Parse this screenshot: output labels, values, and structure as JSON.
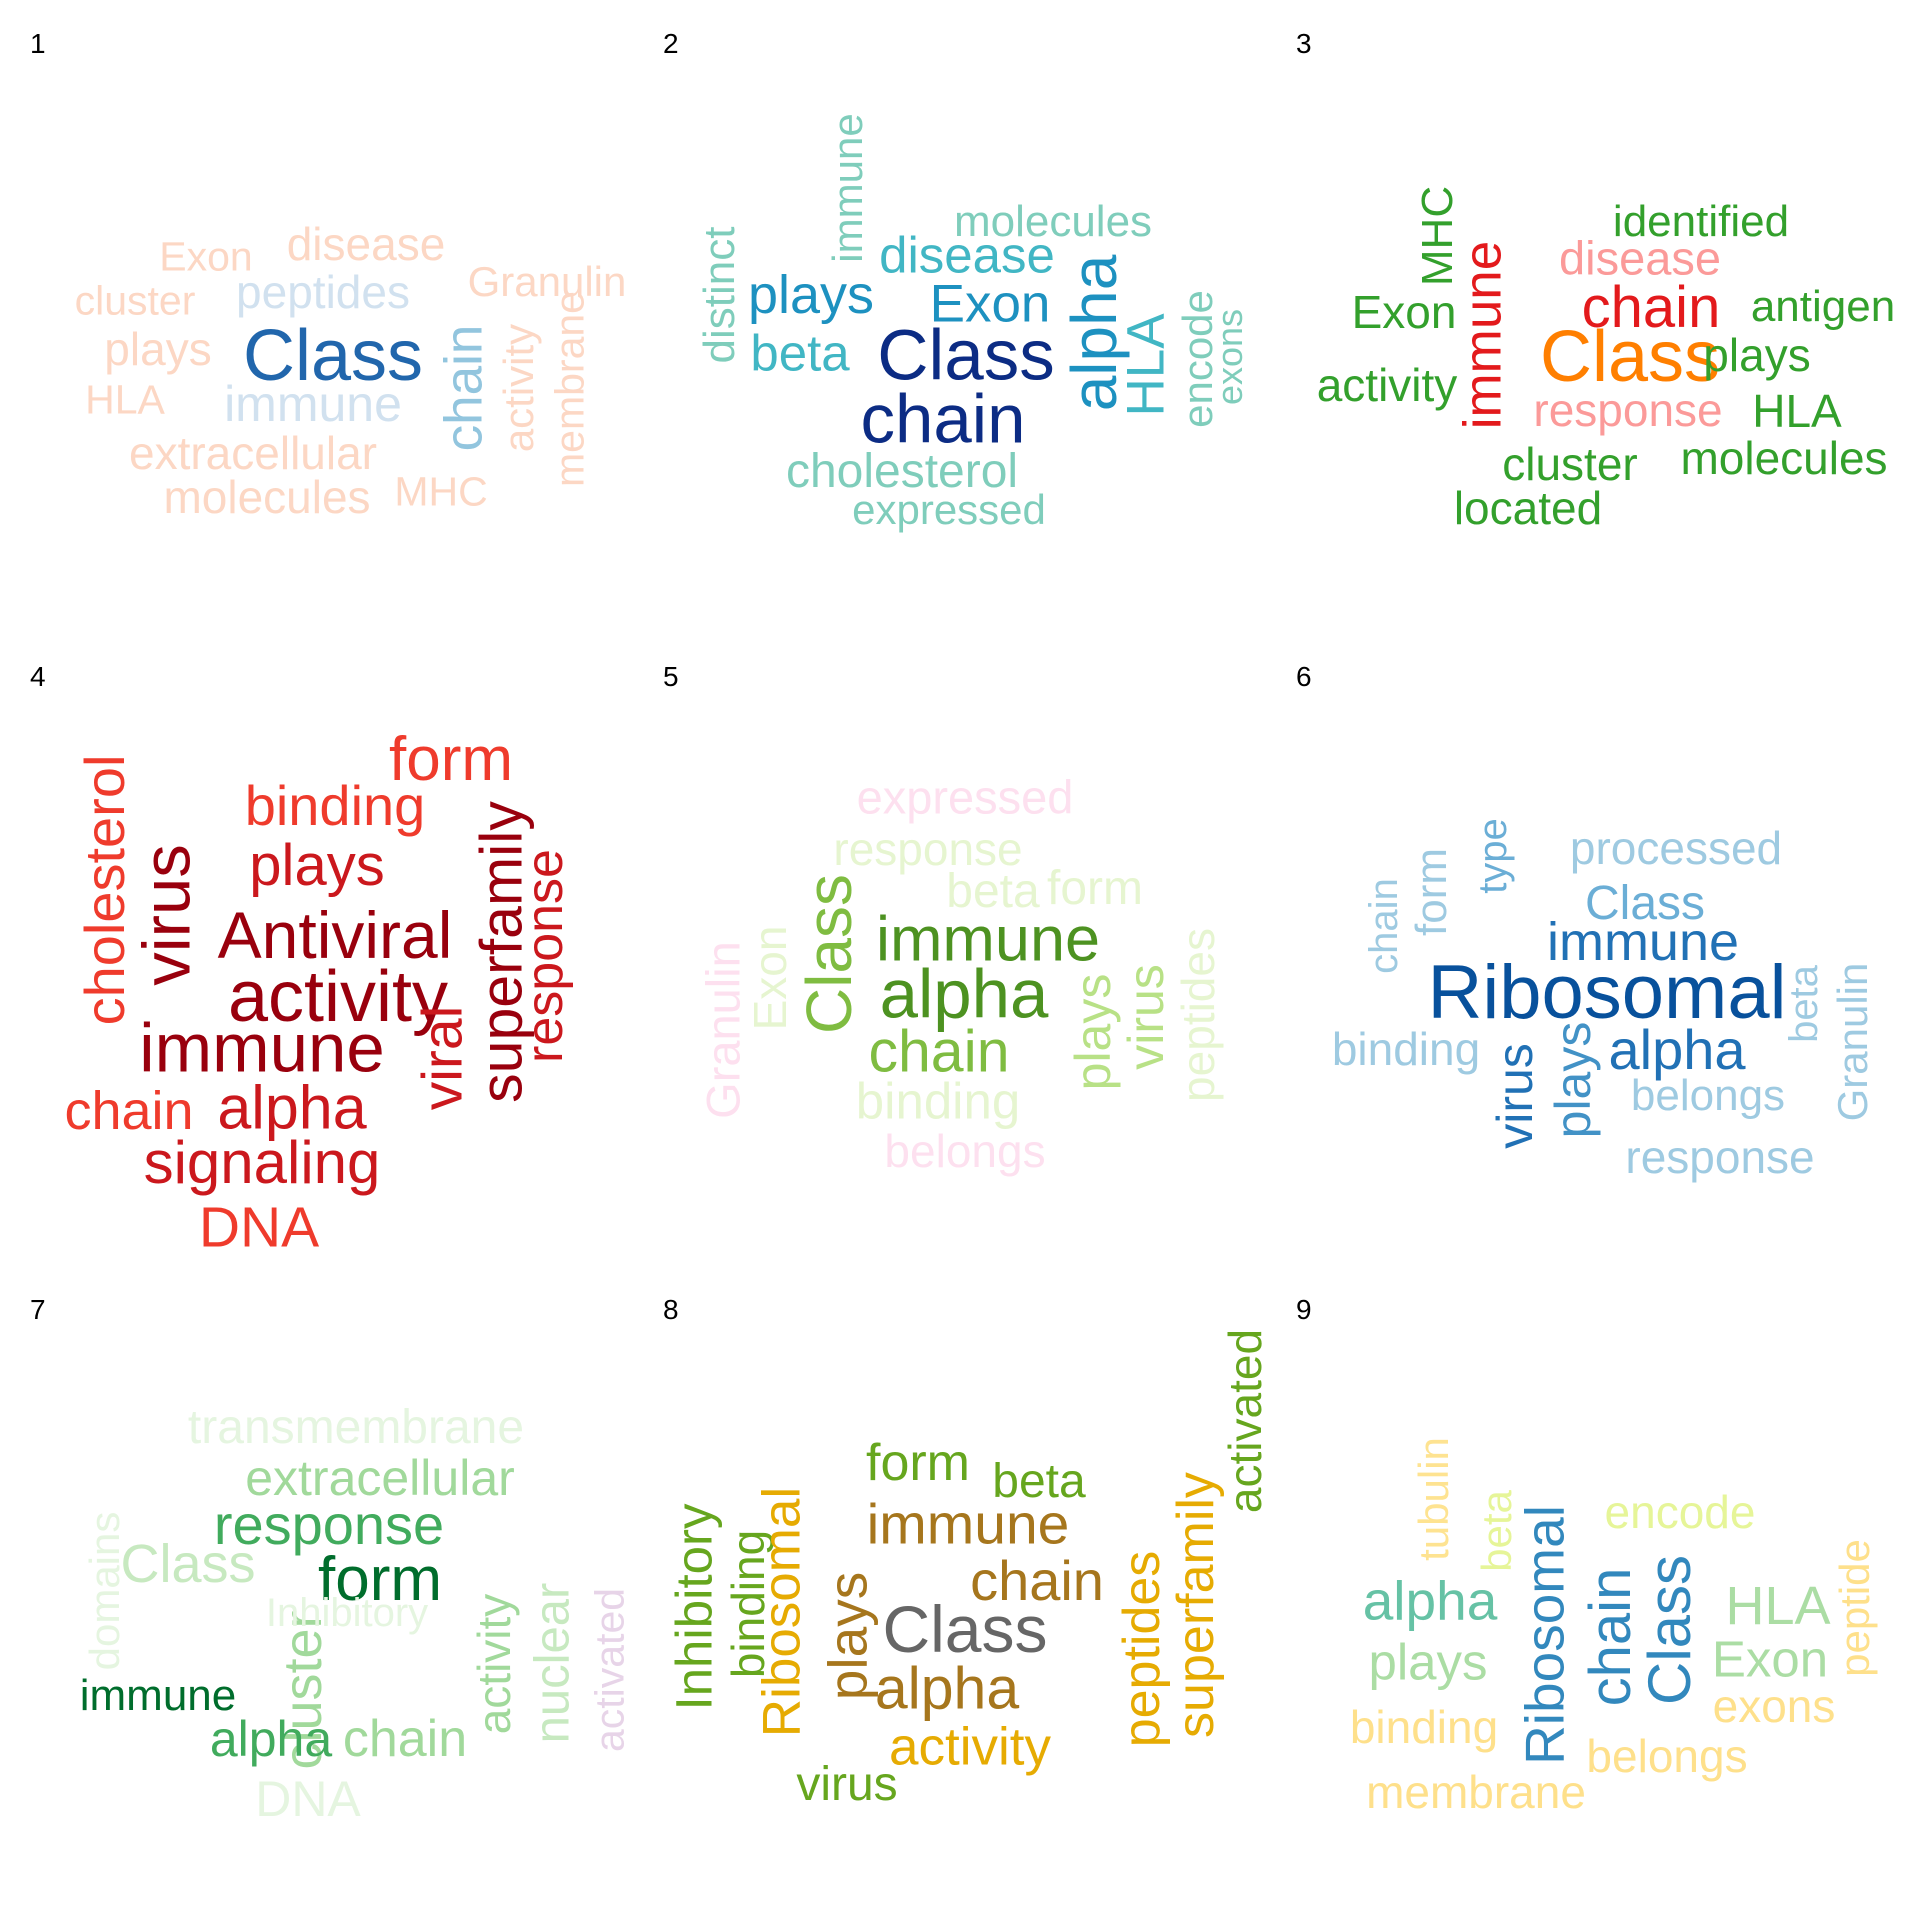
{
  "panels": [
    {
      "label": "1",
      "words": [
        {
          "text": "Exon",
          "color": "#fcd7c4",
          "rotated": false
        },
        {
          "text": "disease",
          "color": "#fcd7c4",
          "rotated": false
        },
        {
          "text": "Granulin",
          "color": "#fcd7c4",
          "rotated": false
        },
        {
          "text": "cluster",
          "color": "#fcd7c4",
          "rotated": false
        },
        {
          "text": "peptides",
          "color": "#d1e1ef",
          "rotated": false
        },
        {
          "text": "plays",
          "color": "#fcd7c4",
          "rotated": false
        },
        {
          "text": "Class",
          "color": "#2166ac",
          "rotated": false
        },
        {
          "text": "chain",
          "color": "#92c5de",
          "rotated": true
        },
        {
          "text": "activity",
          "color": "#fcd7c4",
          "rotated": true
        },
        {
          "text": "membrane",
          "color": "#fcd7c4",
          "rotated": true
        },
        {
          "text": "HLA",
          "color": "#fcd7c4",
          "rotated": false
        },
        {
          "text": "immune",
          "color": "#d1e1ef",
          "rotated": false
        },
        {
          "text": "extracellular",
          "color": "#fcd7c4",
          "rotated": false
        },
        {
          "text": "molecules",
          "color": "#fcd7c4",
          "rotated": false
        },
        {
          "text": "MHC",
          "color": "#fcd7c4",
          "rotated": false
        }
      ]
    },
    {
      "label": "2",
      "words": [
        {
          "text": "immune",
          "color": "#7fcdbb",
          "rotated": true
        },
        {
          "text": "molecules",
          "color": "#7fcdbb",
          "rotated": false
        },
        {
          "text": "distinct",
          "color": "#7fcdbb",
          "rotated": true
        },
        {
          "text": "disease",
          "color": "#41b6c4",
          "rotated": false
        },
        {
          "text": "plays",
          "color": "#1d91c0",
          "rotated": false
        },
        {
          "text": "Exon",
          "color": "#1d91c0",
          "rotated": false
        },
        {
          "text": "alpha",
          "color": "#1d91c0",
          "rotated": true
        },
        {
          "text": "HLA",
          "color": "#41b6c4",
          "rotated": true
        },
        {
          "text": "encode",
          "color": "#7fcdbb",
          "rotated": true
        },
        {
          "text": "exons",
          "color": "#7fcdbb",
          "rotated": true
        },
        {
          "text": "beta",
          "color": "#41b6c4",
          "rotated": false
        },
        {
          "text": "Class",
          "color": "#0c2c84",
          "rotated": false
        },
        {
          "text": "chain",
          "color": "#0c2c84",
          "rotated": false
        },
        {
          "text": "cholesterol",
          "color": "#7fcdbb",
          "rotated": false
        },
        {
          "text": "expressed",
          "color": "#7fcdbb",
          "rotated": false
        }
      ]
    },
    {
      "label": "3",
      "words": [
        {
          "text": "MHC",
          "color": "#33a02c",
          "rotated": true
        },
        {
          "text": "immune",
          "color": "#e31a1c",
          "rotated": true
        },
        {
          "text": "identified",
          "color": "#33a02c",
          "rotated": false
        },
        {
          "text": "disease",
          "color": "#fb9a99",
          "rotated": false
        },
        {
          "text": "Exon",
          "color": "#33a02c",
          "rotated": false
        },
        {
          "text": "chain",
          "color": "#e31a1c",
          "rotated": false
        },
        {
          "text": "antigen",
          "color": "#33a02c",
          "rotated": false
        },
        {
          "text": "Class",
          "color": "#ff7f00",
          "rotated": false
        },
        {
          "text": "plays",
          "color": "#33a02c",
          "rotated": false
        },
        {
          "text": "activity",
          "color": "#33a02c",
          "rotated": false
        },
        {
          "text": "response",
          "color": "#fb9a99",
          "rotated": false
        },
        {
          "text": "HLA",
          "color": "#33a02c",
          "rotated": false
        },
        {
          "text": "cluster",
          "color": "#33a02c",
          "rotated": false
        },
        {
          "text": "molecules",
          "color": "#33a02c",
          "rotated": false
        },
        {
          "text": "located",
          "color": "#33a02c",
          "rotated": false
        }
      ]
    },
    {
      "label": "4",
      "words": [
        {
          "text": "form",
          "color": "#ef3b2c",
          "rotated": false
        },
        {
          "text": "binding",
          "color": "#ef3b2c",
          "rotated": false
        },
        {
          "text": "cholesterol",
          "color": "#ef3b2c",
          "rotated": true
        },
        {
          "text": "plays",
          "color": "#cb181d",
          "rotated": false
        },
        {
          "text": "virus",
          "color": "#99000d",
          "rotated": true
        },
        {
          "text": "superfamily",
          "color": "#99000d",
          "rotated": true
        },
        {
          "text": "Antiviral",
          "color": "#99000d",
          "rotated": false
        },
        {
          "text": "response",
          "color": "#cb181d",
          "rotated": true
        },
        {
          "text": "activity",
          "color": "#99000d",
          "rotated": false
        },
        {
          "text": "immune",
          "color": "#99000d",
          "rotated": false
        },
        {
          "text": "viral",
          "color": "#cb181d",
          "rotated": true
        },
        {
          "text": "chain",
          "color": "#ef3b2c",
          "rotated": false
        },
        {
          "text": "alpha",
          "color": "#cb181d",
          "rotated": false
        },
        {
          "text": "signaling",
          "color": "#cb181d",
          "rotated": false
        },
        {
          "text": "DNA",
          "color": "#ef3b2c",
          "rotated": false
        }
      ]
    },
    {
      "label": "5",
      "words": [
        {
          "text": "expressed",
          "color": "#fde0ef",
          "rotated": false
        },
        {
          "text": "response",
          "color": "#e6f5d0",
          "rotated": false
        },
        {
          "text": "beta",
          "color": "#e6f5d0",
          "rotated": false
        },
        {
          "text": "form",
          "color": "#e6f5d0",
          "rotated": false
        },
        {
          "text": "Granulin",
          "color": "#fde0ef",
          "rotated": true
        },
        {
          "text": "Exon",
          "color": "#e6f5d0",
          "rotated": true
        },
        {
          "text": "Class",
          "color": "#7fbc41",
          "rotated": true
        },
        {
          "text": "immune",
          "color": "#4d9221",
          "rotated": false
        },
        {
          "text": "peptides",
          "color": "#e6f5d0",
          "rotated": true
        },
        {
          "text": "alpha",
          "color": "#4d9221",
          "rotated": false
        },
        {
          "text": "plays",
          "color": "#b8e186",
          "rotated": true
        },
        {
          "text": "virus",
          "color": "#b8e186",
          "rotated": true
        },
        {
          "text": "chain",
          "color": "#7fbc41",
          "rotated": false
        },
        {
          "text": "binding",
          "color": "#e6f5d0",
          "rotated": false
        },
        {
          "text": "belongs",
          "color": "#fde0ef",
          "rotated": false
        }
      ]
    },
    {
      "label": "6",
      "words": [
        {
          "text": "form",
          "color": "#9ecae1",
          "rotated": true
        },
        {
          "text": "type",
          "color": "#6baed6",
          "rotated": true
        },
        {
          "text": "processed",
          "color": "#9ecae1",
          "rotated": false
        },
        {
          "text": "chain",
          "color": "#9ecae1",
          "rotated": true
        },
        {
          "text": "Class",
          "color": "#6baed6",
          "rotated": false
        },
        {
          "text": "immune",
          "color": "#2171b5",
          "rotated": false
        },
        {
          "text": "Ribosomal",
          "color": "#08519c",
          "rotated": false
        },
        {
          "text": "beta",
          "color": "#9ecae1",
          "rotated": true
        },
        {
          "text": "Granulin",
          "color": "#9ecae1",
          "rotated": true
        },
        {
          "text": "binding",
          "color": "#9ecae1",
          "rotated": false
        },
        {
          "text": "virus",
          "color": "#2171b5",
          "rotated": true
        },
        {
          "text": "plays",
          "color": "#4292c6",
          "rotated": true
        },
        {
          "text": "alpha",
          "color": "#2171b5",
          "rotated": false
        },
        {
          "text": "belongs",
          "color": "#9ecae1",
          "rotated": false
        },
        {
          "text": "response",
          "color": "#9ecae1",
          "rotated": false
        }
      ]
    },
    {
      "label": "7",
      "words": [
        {
          "text": "transmembrane",
          "color": "#e5f5e0",
          "rotated": false
        },
        {
          "text": "extracellular",
          "color": "#a1d99b",
          "rotated": false
        },
        {
          "text": "domains",
          "color": "#e5f5e0",
          "rotated": true
        },
        {
          "text": "response",
          "color": "#41ab5d",
          "rotated": false
        },
        {
          "text": "Class",
          "color": "#c7e9c0",
          "rotated": false
        },
        {
          "text": "form",
          "color": "#006d2c",
          "rotated": false
        },
        {
          "text": "activity",
          "color": "#a1d99b",
          "rotated": true
        },
        {
          "text": "nuclear",
          "color": "#c7e9c0",
          "rotated": true
        },
        {
          "text": "activated",
          "color": "#e7d4e8",
          "rotated": true
        },
        {
          "text": "immune",
          "color": "#006d2c",
          "rotated": false
        },
        {
          "text": "cluster",
          "color": "#a1d99b",
          "rotated": true
        },
        {
          "text": "alpha",
          "color": "#41ab5d",
          "rotated": false
        },
        {
          "text": "chain",
          "color": "#a1d99b",
          "rotated": false
        },
        {
          "text": "DNA",
          "color": "#e5f5e0",
          "rotated": false
        },
        {
          "text": "Inhibitory",
          "color": "#e5f5e0",
          "rotated": false
        }
      ]
    },
    {
      "label": "8",
      "words": [
        {
          "text": "activated",
          "color": "#66a61e",
          "rotated": true
        },
        {
          "text": "form",
          "color": "#66a61e",
          "rotated": false
        },
        {
          "text": "beta",
          "color": "#66a61e",
          "rotated": false
        },
        {
          "text": "Inhibitory",
          "color": "#66a61e",
          "rotated": true
        },
        {
          "text": "binding",
          "color": "#66a61e",
          "rotated": true
        },
        {
          "text": "Ribosomal",
          "color": "#e6ab02",
          "rotated": true
        },
        {
          "text": "plays",
          "color": "#a6761d",
          "rotated": true
        },
        {
          "text": "immune",
          "color": "#a6761d",
          "rotated": false
        },
        {
          "text": "chain",
          "color": "#a6761d",
          "rotated": false
        },
        {
          "text": "Class",
          "color": "#666666",
          "rotated": false
        },
        {
          "text": "peptides",
          "color": "#e6ab02",
          "rotated": true
        },
        {
          "text": "superfamily",
          "color": "#e6ab02",
          "rotated": true
        },
        {
          "text": "alpha",
          "color": "#a6761d",
          "rotated": false
        },
        {
          "text": "activity",
          "color": "#e6ab02",
          "rotated": false
        },
        {
          "text": "virus",
          "color": "#66a61e",
          "rotated": false
        }
      ]
    },
    {
      "label": "9",
      "words": [
        {
          "text": "tubulin",
          "color": "#fee391",
          "rotated": true
        },
        {
          "text": "beta",
          "color": "#e6f598",
          "rotated": true
        },
        {
          "text": "Ribosomal",
          "color": "#3288bd",
          "rotated": true
        },
        {
          "text": "encode",
          "color": "#e6f598",
          "rotated": false
        },
        {
          "text": "alpha",
          "color": "#66c2a5",
          "rotated": false
        },
        {
          "text": "chain",
          "color": "#3288bd",
          "rotated": true
        },
        {
          "text": "Class",
          "color": "#3288bd",
          "rotated": true
        },
        {
          "text": "HLA",
          "color": "#abdda4",
          "rotated": false
        },
        {
          "text": "peptide",
          "color": "#fee08b",
          "rotated": true
        },
        {
          "text": "plays",
          "color": "#abdda4",
          "rotated": false
        },
        {
          "text": "Exon",
          "color": "#abdda4",
          "rotated": false
        },
        {
          "text": "exons",
          "color": "#fee08b",
          "rotated": false
        },
        {
          "text": "binding",
          "color": "#fee08b",
          "rotated": false
        },
        {
          "text": "belongs",
          "color": "#fee08b",
          "rotated": false
        },
        {
          "text": "membrane",
          "color": "#fee08b",
          "rotated": false
        }
      ]
    }
  ]
}
